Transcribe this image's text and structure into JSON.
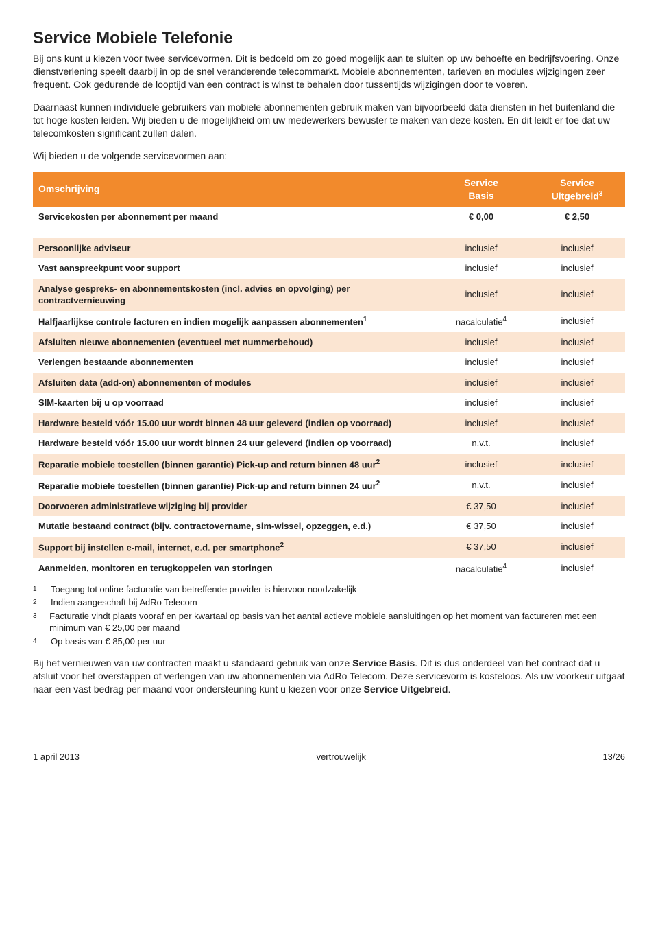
{
  "page": {
    "title": "Service Mobiele Telefonie",
    "para1": "Bij ons kunt u kiezen voor twee servicevormen. Dit is bedoeld om zo goed mogelijk aan te sluiten op uw behoefte en bedrijfsvoering. Onze dienstverlening speelt daarbij in op de snel veranderende telecommarkt. Mobiele abonnementen, tarieven en modules wijzigingen zeer frequent. Ook gedurende de looptijd van een contract is winst te behalen door tussentijds wijzigingen door te voeren.",
    "para2": "Daarnaast kunnen individuele gebruikers van mobiele abonnementen gebruik maken van bijvoorbeeld data diensten in het buitenland die tot hoge kosten leiden. Wij bieden u de mogelijkheid om uw medewerkers bewuster te maken van deze kosten. En dit leidt er toe dat uw telecomkosten significant zullen dalen.",
    "para3": "Wij bieden u de volgende servicevormen aan:",
    "para4_a": "Bij het vernieuwen van uw contracten maakt u standaard gebruik van onze ",
    "para4_b": "Service Basis",
    "para4_c": ". Dit is dus onderdeel van het contract dat u afsluit voor het overstappen of verlengen van uw abonnementen via AdRo Telecom. Deze servicevorm is kosteloos. Als uw voorkeur uitgaat naar een vast bedrag per maand voor ondersteuning kunt u kiezen voor onze ",
    "para4_d": "Service Uitgebreid",
    "para4_e": "."
  },
  "table": {
    "header": {
      "col0": "Omschrijving",
      "col1_line1": "Service",
      "col1_line2": "Basis",
      "col2_line1": "Service",
      "col2_line2": "Uitgebreid",
      "col2_sup": "3"
    },
    "costrow": {
      "label": "Servicekosten per abonnement per maand",
      "basis": "€ 0,00",
      "uitgebreid": "€ 2,50"
    },
    "rows": [
      {
        "alt": true,
        "label": "Persoonlijke adviseur",
        "sup": "",
        "basis": "inclusief",
        "uitgebreid": "inclusief"
      },
      {
        "alt": false,
        "label": "Vast aanspreekpunt voor support",
        "sup": "",
        "basis": "inclusief",
        "uitgebreid": "inclusief"
      },
      {
        "alt": true,
        "label": "Analyse gespreks- en abonnementskosten (incl. advies en opvolging) per contractvernieuwing",
        "sup": "",
        "basis": "inclusief",
        "uitgebreid": "inclusief"
      },
      {
        "alt": false,
        "label": "Halfjaarlijkse controle facturen en indien mogelijk aanpassen abonnementen",
        "sup": "1",
        "basis": "nacalculatie",
        "basis_sup": "4",
        "uitgebreid": "inclusief"
      },
      {
        "alt": true,
        "label": "Afsluiten nieuwe abonnementen (eventueel met nummerbehoud)",
        "sup": "",
        "basis": "inclusief",
        "uitgebreid": "inclusief"
      },
      {
        "alt": false,
        "label": "Verlengen bestaande abonnementen",
        "sup": "",
        "basis": "inclusief",
        "uitgebreid": "inclusief"
      },
      {
        "alt": true,
        "label": "Afsluiten data (add-on) abonnementen of modules",
        "sup": "",
        "basis": "inclusief",
        "uitgebreid": "inclusief"
      },
      {
        "alt": false,
        "label": "SIM-kaarten bij u op voorraad",
        "sup": "",
        "basis": "inclusief",
        "uitgebreid": "inclusief"
      },
      {
        "alt": true,
        "label": "Hardware besteld vóór 15.00 uur wordt binnen 48 uur geleverd (indien op voorraad)",
        "sup": "",
        "basis": "inclusief",
        "uitgebreid": "inclusief"
      },
      {
        "alt": false,
        "label": "Hardware besteld vóór 15.00 uur wordt binnen 24 uur geleverd (indien op voorraad)",
        "sup": "",
        "basis": "n.v.t.",
        "uitgebreid": "inclusief"
      },
      {
        "alt": true,
        "label": "Reparatie mobiele toestellen (binnen garantie) Pick-up and return binnen 48 uur",
        "sup": "2",
        "basis": "inclusief",
        "uitgebreid": "inclusief"
      },
      {
        "alt": false,
        "label": "Reparatie mobiele toestellen (binnen garantie) Pick-up and return binnen 24 uur",
        "sup": "2",
        "basis": "n.v.t.",
        "uitgebreid": "inclusief"
      },
      {
        "alt": true,
        "label": "Doorvoeren administratieve wijziging bij provider",
        "sup": "",
        "basis": "€ 37,50",
        "uitgebreid": "inclusief"
      },
      {
        "alt": false,
        "label": "Mutatie bestaand contract (bijv. contractovername, sim-wissel, opzeggen, e.d.)",
        "sup": "",
        "basis": "€ 37,50",
        "uitgebreid": "inclusief"
      },
      {
        "alt": true,
        "label": "Support bij instellen e-mail, internet, e.d. per smartphone",
        "sup": "2",
        "basis": "€ 37,50",
        "uitgebreid": "inclusief"
      },
      {
        "alt": false,
        "label": "Aanmelden, monitoren en terugkoppelen van storingen",
        "sup": "",
        "basis": "nacalculatie",
        "basis_sup": "4",
        "uitgebreid": "inclusief"
      }
    ]
  },
  "footnotes": [
    {
      "n": "1",
      "t": "Toegang tot online facturatie van betreffende provider is hiervoor noodzakelijk"
    },
    {
      "n": "2",
      "t": "Indien aangeschaft bij AdRo Telecom"
    },
    {
      "n": "3",
      "t": "Facturatie vindt plaats vooraf en per kwartaal op basis van het aantal actieve mobiele aansluitingen op het moment van factureren met een minimum van € 25,00 per maand"
    },
    {
      "n": "4",
      "t": "Op basis van € 85,00 per uur"
    }
  ],
  "footer": {
    "left": "1 april 2013",
    "center": "vertrouwelijk",
    "right": "13/26"
  },
  "style": {
    "header_bg": "#f28a2c",
    "header_fg": "#ffffff",
    "alt_row_bg": "#fbe5d2",
    "plain_row_bg": "#ffffff",
    "title_fontsize": 24,
    "body_fontsize": 14,
    "table_fontsize": 13
  }
}
